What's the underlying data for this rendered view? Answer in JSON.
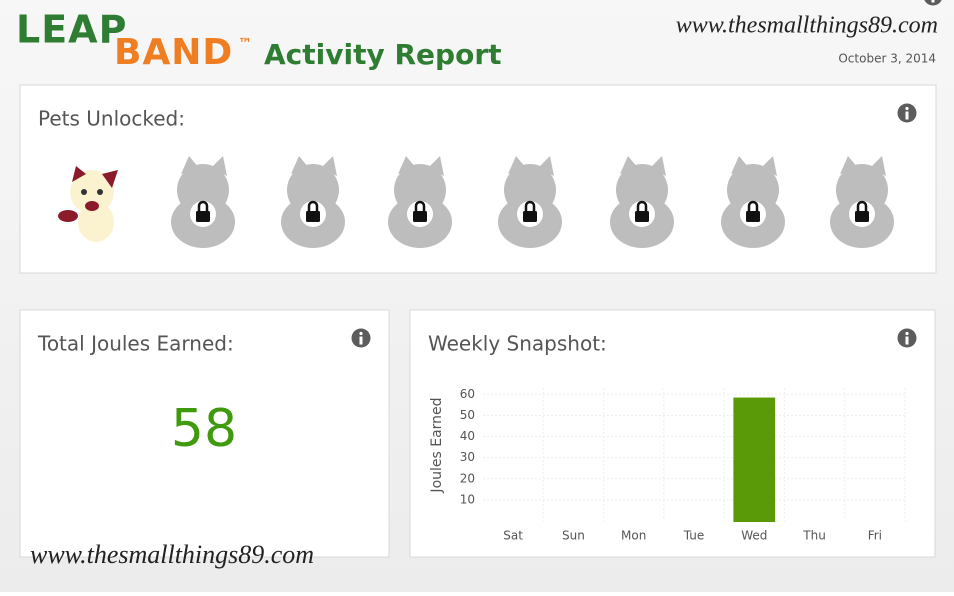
{
  "header": {
    "logo_leap": "LEAP",
    "logo_band": "BAND",
    "trademark": "™",
    "title": "Activity Report",
    "watermark": "www.thesmallthings89.com",
    "date": "October 3, 2014"
  },
  "pets": {
    "title": "Pets Unlocked:"
  },
  "joules": {
    "title": "Total Joules Earned:",
    "value": 58
  },
  "weekly": {
    "title": "Weekly Snapshot:",
    "chart": {
      "type": "bar",
      "y_label": "Joules Earned",
      "categories": [
        "Sat",
        "Sun",
        "Mon",
        "Tue",
        "Wed",
        "Thu",
        "Fri"
      ],
      "values": [
        0,
        0,
        0,
        0,
        58,
        0,
        0
      ],
      "color": "#5a9a08",
      "ylim": [
        0,
        63
      ],
      "yticks": [
        10,
        20,
        30,
        40,
        50,
        60
      ],
      "grid": true
    }
  },
  "footer": {
    "watermark": "www.thesmallthings89.com"
  }
}
